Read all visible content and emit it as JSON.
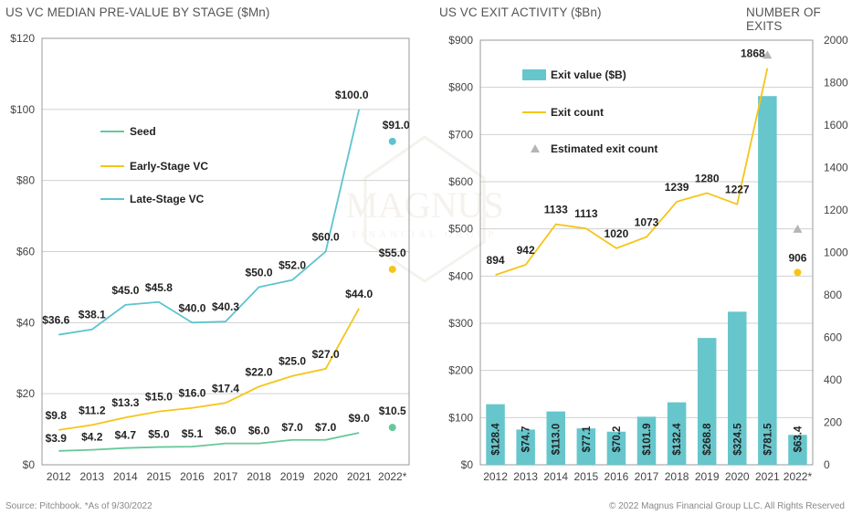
{
  "titles": {
    "left": "US VC MEDIAN PRE-VALUE BY STAGE ($Mn)",
    "right": "US VC EXIT ACTIVITY ($Bn)",
    "right_secondary": "NUMBER OF EXITS"
  },
  "footer": {
    "source": "Source: Pitchbook. *As of 9/30/2022",
    "copyright": "© 2022 Magnus Financial Group LLC. All Rights Reserved"
  },
  "colors": {
    "seed": "#66c89a",
    "early": "#f5c518",
    "late": "#5cc4cf",
    "bar": "#66c6cc",
    "exit_line": "#f5c518",
    "estimate_marker": "#b5b5b5",
    "grid": "#d0d0d0",
    "frame": "#999999"
  },
  "chart_data": [
    {
      "type": "line",
      "title": "US VC MEDIAN PRE-VALUE BY STAGE ($Mn)",
      "categories": [
        "2012",
        "2013",
        "2014",
        "2015",
        "2016",
        "2017",
        "2018",
        "2019",
        "2020",
        "2021",
        "2022*"
      ],
      "ylim": [
        0,
        120
      ],
      "yticks": [
        "$0",
        "$20",
        "$40",
        "$60",
        "$80",
        "$100",
        "$120"
      ],
      "grid": true,
      "legend_position": "top-left",
      "series": [
        {
          "name": "Seed",
          "values": [
            3.9,
            4.2,
            4.7,
            5.0,
            5.1,
            6.0,
            6.0,
            7.0,
            7.0,
            9.0,
            10.5
          ],
          "labels": [
            "$3.9",
            "$4.2",
            "$4.7",
            "$5.0",
            "$5.1",
            "$6.0",
            "$6.0",
            "$7.0",
            "$7.0",
            "$9.0",
            "$10.5"
          ]
        },
        {
          "name": "Early-Stage VC",
          "values": [
            9.8,
            11.2,
            13.3,
            15.0,
            16.0,
            17.4,
            22.0,
            25.0,
            27.0,
            44.0,
            55.0
          ],
          "labels": [
            "$9.8",
            "$11.2",
            "$13.3",
            "$15.0",
            "$16.0",
            "$17.4",
            "$22.0",
            "$25.0",
            "$27.0",
            "$44.0",
            "$55.0"
          ]
        },
        {
          "name": "Late-Stage VC",
          "values": [
            36.6,
            38.1,
            45.0,
            45.8,
            40.0,
            40.3,
            50.0,
            52.0,
            60.0,
            100.0,
            91.0
          ],
          "labels": [
            "$36.6",
            "$38.1",
            "$45.0",
            "$45.8",
            "$40.0",
            "$40.3",
            "$50.0",
            "$52.0",
            "$60.0",
            "$100.0",
            "$91.0"
          ]
        }
      ]
    },
    {
      "type": "bar",
      "title": "US VC EXIT ACTIVITY ($Bn)",
      "categories": [
        "2012",
        "2013",
        "2014",
        "2015",
        "2016",
        "2017",
        "2018",
        "2019",
        "2020",
        "2021",
        "2022*"
      ],
      "ylim": [
        0,
        900
      ],
      "yticks": [
        "$0",
        "$100",
        "$200",
        "$300",
        "$400",
        "$500",
        "$600",
        "$700",
        "$800",
        "$900"
      ],
      "y2label": "NUMBER OF EXITS",
      "y2lim": [
        0,
        2000
      ],
      "y2ticks": [
        "0",
        "200",
        "400",
        "600",
        "800",
        "1000",
        "1200",
        "1400",
        "1600",
        "1800",
        "2000"
      ],
      "grid": true,
      "legend_position": "top-left",
      "series": [
        {
          "name": "Exit value ($B)",
          "type": "bar",
          "axis": "left",
          "values": [
            128.4,
            74.7,
            113.0,
            77.1,
            70.2,
            101.9,
            132.4,
            268.8,
            324.5,
            781.5,
            63.4
          ],
          "labels": [
            "$128.4",
            "$74.7",
            "$113.0",
            "$77.1",
            "$70.2",
            "$101.9",
            "$132.4",
            "$268.8",
            "$324.5",
            "$781.5",
            "$63.4"
          ]
        },
        {
          "name": "Exit count",
          "type": "line",
          "axis": "right",
          "values": [
            894,
            942,
            1133,
            1113,
            1020,
            1073,
            1239,
            1280,
            1227,
            1868,
            906
          ],
          "labels": [
            "894",
            "942",
            "1133",
            "1113",
            "1020",
            "1073",
            "1239",
            "1280",
            "1227",
            "1868",
            "906"
          ]
        },
        {
          "name": "Estimated exit count",
          "type": "marker",
          "axis": "right",
          "values": [
            null,
            null,
            null,
            null,
            null,
            null,
            null,
            null,
            null,
            1930,
            1110
          ]
        }
      ]
    }
  ]
}
